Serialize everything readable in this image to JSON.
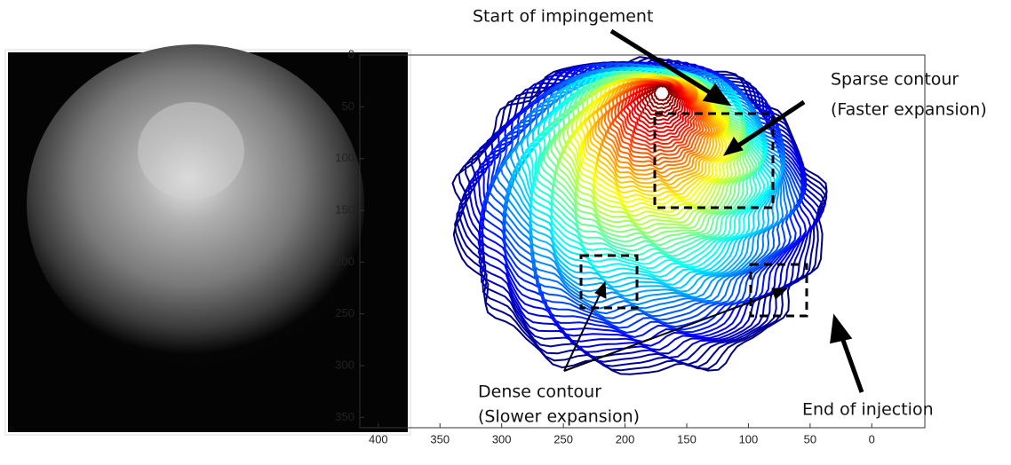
{
  "chart_data": {
    "type": "contour",
    "xlim": [
      415,
      -43
    ],
    "xticks": [
      400,
      350,
      300,
      250,
      200,
      150,
      100,
      50,
      0
    ],
    "ylim": [
      0,
      360
    ],
    "yticks": [
      0,
      50,
      100,
      150,
      200,
      250,
      300,
      350
    ],
    "annotations": [
      "Start of impingement",
      "Sparse contour",
      "(Faster expansion)",
      "Dense contour",
      "(Slower expansion)",
      "End of injection"
    ]
  }
}
